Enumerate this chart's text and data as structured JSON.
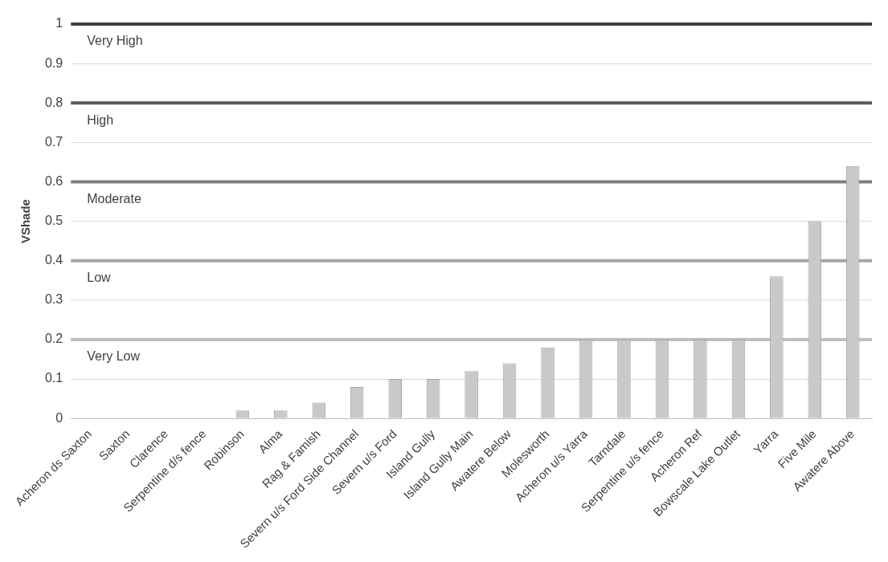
{
  "chart_data": {
    "type": "bar",
    "ylabel": "VShade",
    "categories": [
      "Acheron ds Saxton",
      "Saxton",
      "Clarence",
      "Serpentine d/s fence",
      "Robinson",
      "Alma",
      "Rag & Famish",
      "Severn u/s Ford Side Channel",
      "Severn u/s Ford",
      "Island Gully",
      "Island Gully Main",
      "Awatere Below",
      "Molesworth",
      "Acheron u/s Yarra",
      "Tarndale",
      "Serpentine u/s fence",
      "Acheron Ref",
      "Bowscale Lake Outlet",
      "Yarra",
      "Five Mile",
      "Awatere Above"
    ],
    "values": [
      0,
      0,
      0,
      0,
      0.02,
      0.02,
      0.04,
      0.08,
      0.1,
      0.1,
      0.12,
      0.14,
      0.18,
      0.2,
      0.2,
      0.2,
      0.2,
      0.2,
      0.36,
      0.5,
      0.64
    ],
    "color": "#c9c9c9",
    "ylim": [
      0,
      1
    ],
    "yticks": [
      0,
      0.1,
      0.2,
      0.3,
      0.4,
      0.5,
      0.6,
      0.7,
      0.8,
      0.9,
      1
    ],
    "grid": "y",
    "legend": false,
    "ref_lines": [
      {
        "axis": "y",
        "value": 0.2,
        "label": "Very Low",
        "color": "#bfbfbf"
      },
      {
        "axis": "y",
        "value": 0.4,
        "label": "Low",
        "color": "#a6a6a6"
      },
      {
        "axis": "y",
        "value": 0.6,
        "label": "Moderate",
        "color": "#7f7f7f"
      },
      {
        "axis": "y",
        "value": 0.8,
        "label": "High",
        "color": "#595959"
      },
      {
        "axis": "y",
        "value": 1,
        "label": "Very High",
        "color": "#404040"
      }
    ]
  }
}
